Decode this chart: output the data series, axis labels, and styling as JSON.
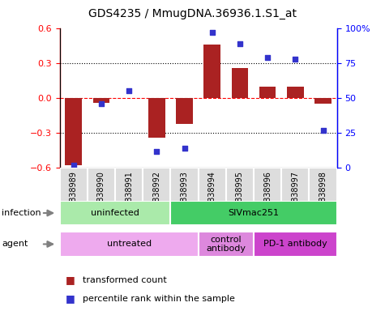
{
  "title": "GDS4235 / MmugDNA.36936.1.S1_at",
  "samples": [
    "GSM838989",
    "GSM838990",
    "GSM838991",
    "GSM838992",
    "GSM838993",
    "GSM838994",
    "GSM838995",
    "GSM838996",
    "GSM838997",
    "GSM838998"
  ],
  "transformed_count": [
    -0.58,
    -0.04,
    0.0,
    -0.34,
    -0.22,
    0.46,
    0.26,
    0.1,
    0.1,
    -0.05
  ],
  "percentile_rank": [
    2,
    46,
    55,
    12,
    14,
    97,
    89,
    79,
    78,
    27
  ],
  "ylim_left": [
    -0.6,
    0.6
  ],
  "ylim_right": [
    0,
    100
  ],
  "yticks_left": [
    -0.6,
    -0.3,
    0,
    0.3,
    0.6
  ],
  "yticks_right": [
    0,
    25,
    50,
    75,
    100
  ],
  "ytick_labels_right": [
    "0",
    "25",
    "50",
    "75",
    "100%"
  ],
  "bar_color": "#aa2222",
  "dot_color": "#3333cc",
  "infection_groups": [
    {
      "label": "uninfected",
      "start": 0,
      "end": 4,
      "color": "#aaeaaa"
    },
    {
      "label": "SIVmac251",
      "start": 4,
      "end": 10,
      "color": "#44cc66"
    }
  ],
  "agent_groups": [
    {
      "label": "untreated",
      "start": 0,
      "end": 5,
      "color": "#eeaaee"
    },
    {
      "label": "control\nantibody",
      "start": 5,
      "end": 7,
      "color": "#dd88dd"
    },
    {
      "label": "PD-1 antibody",
      "start": 7,
      "end": 10,
      "color": "#cc44cc"
    }
  ],
  "legend_bar_label": "transformed count",
  "legend_dot_label": "percentile rank within the sample",
  "infection_label": "infection",
  "agent_label": "agent"
}
